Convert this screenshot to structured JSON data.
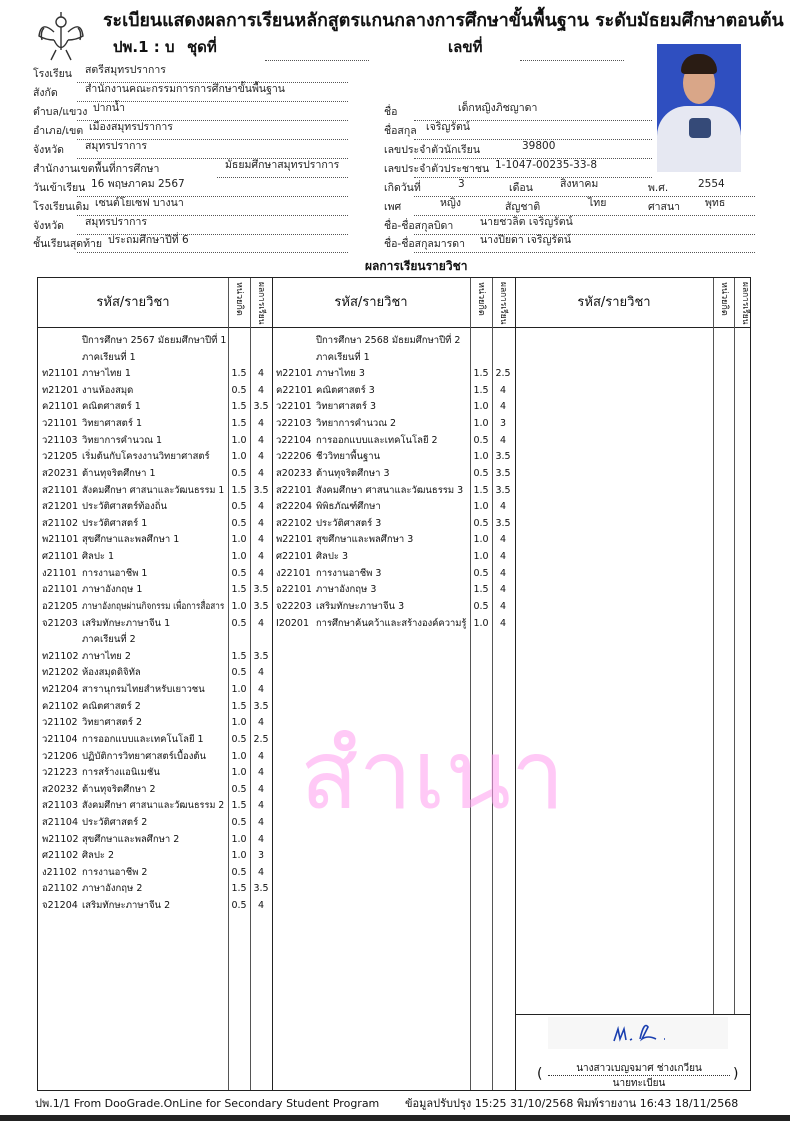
{
  "header": {
    "title": "ระเบียนแสดงผลการเรียนหลักสูตรแกนกลางการศึกษาขั้นพื้นฐาน  ระดับมัธยมศึกษาตอนต้น",
    "form_code": "ปพ.1 : บ",
    "set_label": "ชุดที่",
    "number_label": "เลขที่",
    "emblem": "garuda-emblem"
  },
  "school_info": [
    {
      "label": "โรงเรียน",
      "value": "สตรีสมุทรปราการ"
    },
    {
      "label": "สังกัด",
      "value": "สำนักงานคณะกรรมการการศึกษาขั้นพื้นฐาน"
    },
    {
      "label": "ตำบล/แขวง",
      "value": "ปากน้ำ"
    },
    {
      "label": "อำเภอ/เขต",
      "value": "เมืองสมุทรปราการ"
    },
    {
      "label": "จังหวัด",
      "value": "สมุทรปราการ"
    },
    {
      "label": "สำนักงานเขตพื้นที่การศึกษา",
      "value": "มัธยมศึกษาสมุทรปราการ"
    },
    {
      "label": "วันเข้าเรียน",
      "value": "16  พฤษภาคม  2567"
    },
    {
      "label": "โรงเรียนเดิม",
      "value": "เซนต์โยเซฟ บางนา"
    },
    {
      "label": "จังหวัด",
      "value": "สมุทรปราการ"
    },
    {
      "label": "ชั้นเรียนสุดท้าย",
      "value": "ประถมศึกษาปีที่ 6"
    }
  ],
  "student": {
    "name_label": "ชื่อ",
    "name": "เด็กหญิงภิชญาดา",
    "surname_label": "ชื่อสกุล",
    "surname": "เจริญรัตน์",
    "student_id_label": "เลขประจำตัวนักเรียน",
    "student_id": "39800",
    "citizen_id_label": "เลขประจำตัวประชาชน",
    "citizen_id": "1-1047-00235-33-8",
    "birth_day_label": "เกิดวันที่",
    "birth_day": "3",
    "birth_month_label": "เดือน",
    "birth_month": "สิงหาคม",
    "birth_year_label": "พ.ศ.",
    "birth_year": "2554",
    "sex_label": "เพศ",
    "sex": "หญิง",
    "nationality_label": "สัญชาติ",
    "nationality": "ไทย",
    "religion_label": "ศาสนา",
    "religion": "พุทธ",
    "father_label": "ชื่อ-ชื่อสกุลบิดา",
    "father": "นายชวลิต  เจริญรัตน์",
    "mother_label": "ชื่อ-ชื่อสกุลมารดา",
    "mother": "นางปียดา  เจริญรัตน์"
  },
  "section_title": "ผลการเรียนรายวิชา",
  "table_headers": {
    "subject": "รหัส/รายวิชา",
    "credits": "หน่วยกิต",
    "grade": "ผลการเรียน"
  },
  "panels": [
    {
      "rows": [
        {
          "heading": "ปีการศึกษา 2567  มัธยมศึกษาปีที่ 1"
        },
        {
          "heading": "ภาคเรียนที่ 1"
        },
        {
          "code": "ท21101",
          "name": "ภาษาไทย 1",
          "credit": "1.5",
          "grade": "4"
        },
        {
          "code": "ท21201",
          "name": "งานห้องสมุด",
          "credit": "0.5",
          "grade": "4"
        },
        {
          "code": "ค21101",
          "name": "คณิตศาสตร์ 1",
          "credit": "1.5",
          "grade": "3.5"
        },
        {
          "code": "ว21101",
          "name": "วิทยาศาสตร์ 1",
          "credit": "1.5",
          "grade": "4"
        },
        {
          "code": "ว21103",
          "name": "วิทยาการคำนวณ 1",
          "credit": "1.0",
          "grade": "4"
        },
        {
          "code": "ว21205",
          "name": "เริ่มต้นกับโครงงานวิทยาศาสตร์",
          "credit": "1.0",
          "grade": "4"
        },
        {
          "code": "ส20231",
          "name": "ต้านทุจริตศึกษา 1",
          "credit": "0.5",
          "grade": "4"
        },
        {
          "code": "ส21101",
          "name": "สังคมศึกษา ศาสนาและวัฒนธรรม 1",
          "credit": "1.5",
          "grade": "3.5"
        },
        {
          "code": "ส21201",
          "name": "ประวัติศาสตร์ท้องถิ่น",
          "credit": "0.5",
          "grade": "4"
        },
        {
          "code": "ส21102",
          "name": "ประวัติศาสตร์ 1",
          "credit": "0.5",
          "grade": "4"
        },
        {
          "code": "พ21101",
          "name": "สุขศึกษาและพลศึกษา 1",
          "credit": "1.0",
          "grade": "4"
        },
        {
          "code": "ศ21101",
          "name": "ศิลปะ 1",
          "credit": "1.0",
          "grade": "4"
        },
        {
          "code": "ง21101",
          "name": "การงานอาชีพ 1",
          "credit": "0.5",
          "grade": "4"
        },
        {
          "code": "อ21101",
          "name": "ภาษาอังกฤษ 1",
          "credit": "1.5",
          "grade": "3.5"
        },
        {
          "code": "อ21205",
          "name": "ภาษาอังกฤษผ่านกิจกรรม เพื่อการสื่อสาร",
          "credit": "1.0",
          "grade": "3.5"
        },
        {
          "code": "จ21203",
          "name": "เสริมทักษะภาษาจีน 1",
          "credit": "0.5",
          "grade": "4"
        },
        {
          "heading": "ภาคเรียนที่ 2"
        },
        {
          "code": "ท21102",
          "name": "ภาษาไทย 2",
          "credit": "1.5",
          "grade": "3.5"
        },
        {
          "code": "ท21202",
          "name": "ห้องสมุดดิจิทัล",
          "credit": "0.5",
          "grade": "4"
        },
        {
          "code": "ท21204",
          "name": "สารานุกรมไทยสำหรับเยาวชน",
          "credit": "1.0",
          "grade": "4"
        },
        {
          "code": "ค21102",
          "name": "คณิตศาสตร์ 2",
          "credit": "1.5",
          "grade": "3.5"
        },
        {
          "code": "ว21102",
          "name": "วิทยาศาสตร์ 2",
          "credit": "1.0",
          "grade": "4"
        },
        {
          "code": "ว21104",
          "name": "การออกแบบและเทคโนโลยี 1",
          "credit": "0.5",
          "grade": "2.5"
        },
        {
          "code": "ว21206",
          "name": "ปฏิบัติการวิทยาศาสตร์เบื้องต้น",
          "credit": "1.0",
          "grade": "4"
        },
        {
          "code": "ว21223",
          "name": "การสร้างแอนิเมชัน",
          "credit": "1.0",
          "grade": "4"
        },
        {
          "code": "ส20232",
          "name": "ต้านทุจริตศึกษา 2",
          "credit": "0.5",
          "grade": "4"
        },
        {
          "code": "ส21103",
          "name": "สังคมศึกษา ศาสนาและวัฒนธรรม 2",
          "credit": "1.5",
          "grade": "4"
        },
        {
          "code": "ส21104",
          "name": "ประวัติศาสตร์ 2",
          "credit": "0.5",
          "grade": "4"
        },
        {
          "code": "พ21102",
          "name": "สุขศึกษาและพลศึกษา 2",
          "credit": "1.0",
          "grade": "4"
        },
        {
          "code": "ศ21102",
          "name": "ศิลปะ 2",
          "credit": "1.0",
          "grade": "3"
        },
        {
          "code": "ง21102",
          "name": "การงานอาชีพ 2",
          "credit": "0.5",
          "grade": "4"
        },
        {
          "code": "อ21102",
          "name": "ภาษาอังกฤษ 2",
          "credit": "1.5",
          "grade": "3.5"
        },
        {
          "code": "จ21204",
          "name": "เสริมทักษะภาษาจีน 2",
          "credit": "0.5",
          "grade": "4"
        }
      ]
    },
    {
      "rows": [
        {
          "heading": "ปีการศึกษา 2568  มัธยมศึกษาปีที่ 2"
        },
        {
          "heading": "ภาคเรียนที่ 1"
        },
        {
          "code": "ท22101",
          "name": "ภาษาไทย 3",
          "credit": "1.5",
          "grade": "2.5"
        },
        {
          "code": "ค22101",
          "name": "คณิตศาสตร์ 3",
          "credit": "1.5",
          "grade": "4"
        },
        {
          "code": "ว22101",
          "name": "วิทยาศาสตร์ 3",
          "credit": "1.0",
          "grade": "4"
        },
        {
          "code": "ว22103",
          "name": "วิทยาการคำนวณ 2",
          "credit": "1.0",
          "grade": "3"
        },
        {
          "code": "ว22104",
          "name": "การออกแบบและเทคโนโลยี 2",
          "credit": "0.5",
          "grade": "4"
        },
        {
          "code": "ว22206",
          "name": "ชีววิทยาพื้นฐาน",
          "credit": "1.0",
          "grade": "3.5"
        },
        {
          "code": "ส20233",
          "name": "ต้านทุจริตศึกษา 3",
          "credit": "0.5",
          "grade": "3.5"
        },
        {
          "code": "ส22101",
          "name": "สังคมศึกษา ศาสนาและวัฒนธรรม 3",
          "credit": "1.5",
          "grade": "3.5"
        },
        {
          "code": "ส22204",
          "name": "พิพิธภัณฑ์ศึกษา",
          "credit": "1.0",
          "grade": "4"
        },
        {
          "code": "ส22102",
          "name": "ประวัติศาสตร์ 3",
          "credit": "0.5",
          "grade": "3.5"
        },
        {
          "code": "พ22101",
          "name": "สุขศึกษาและพลศึกษา 3",
          "credit": "1.0",
          "grade": "4"
        },
        {
          "code": "ศ22101",
          "name": "ศิลปะ 3",
          "credit": "1.0",
          "grade": "4"
        },
        {
          "code": "ง22101",
          "name": "การงานอาชีพ 3",
          "credit": "0.5",
          "grade": "4"
        },
        {
          "code": "อ22101",
          "name": "ภาษาอังกฤษ 3",
          "credit": "1.5",
          "grade": "4"
        },
        {
          "code": "จ22203",
          "name": "เสริมทักษะภาษาจีน 3",
          "credit": "0.5",
          "grade": "4"
        },
        {
          "code": "I20201",
          "name": "การศึกษาค้นคว้าและสร้างองค์ความรู้",
          "credit": "1.0",
          "grade": "4"
        }
      ]
    },
    {
      "rows": []
    }
  ],
  "watermark": "สำเนา",
  "signature": {
    "name": "นางสาวเบญจมาศ  ช่างเกวียน",
    "title": "นายทะเบียน",
    "open": "(",
    "close": ")"
  },
  "footer": {
    "left": "ปพ.1/1 From DooGrade.OnLine for Secondary Student Program",
    "right": "ข้อมูลปรับปรุง 15:25 31/10/2568  พิมพ์รายงาน 16:43 18/11/2568"
  },
  "colors": {
    "watermark": "#ff9ef0",
    "signature_ink": "#1a3fb0",
    "photo_bg": "#2f4fc0"
  }
}
